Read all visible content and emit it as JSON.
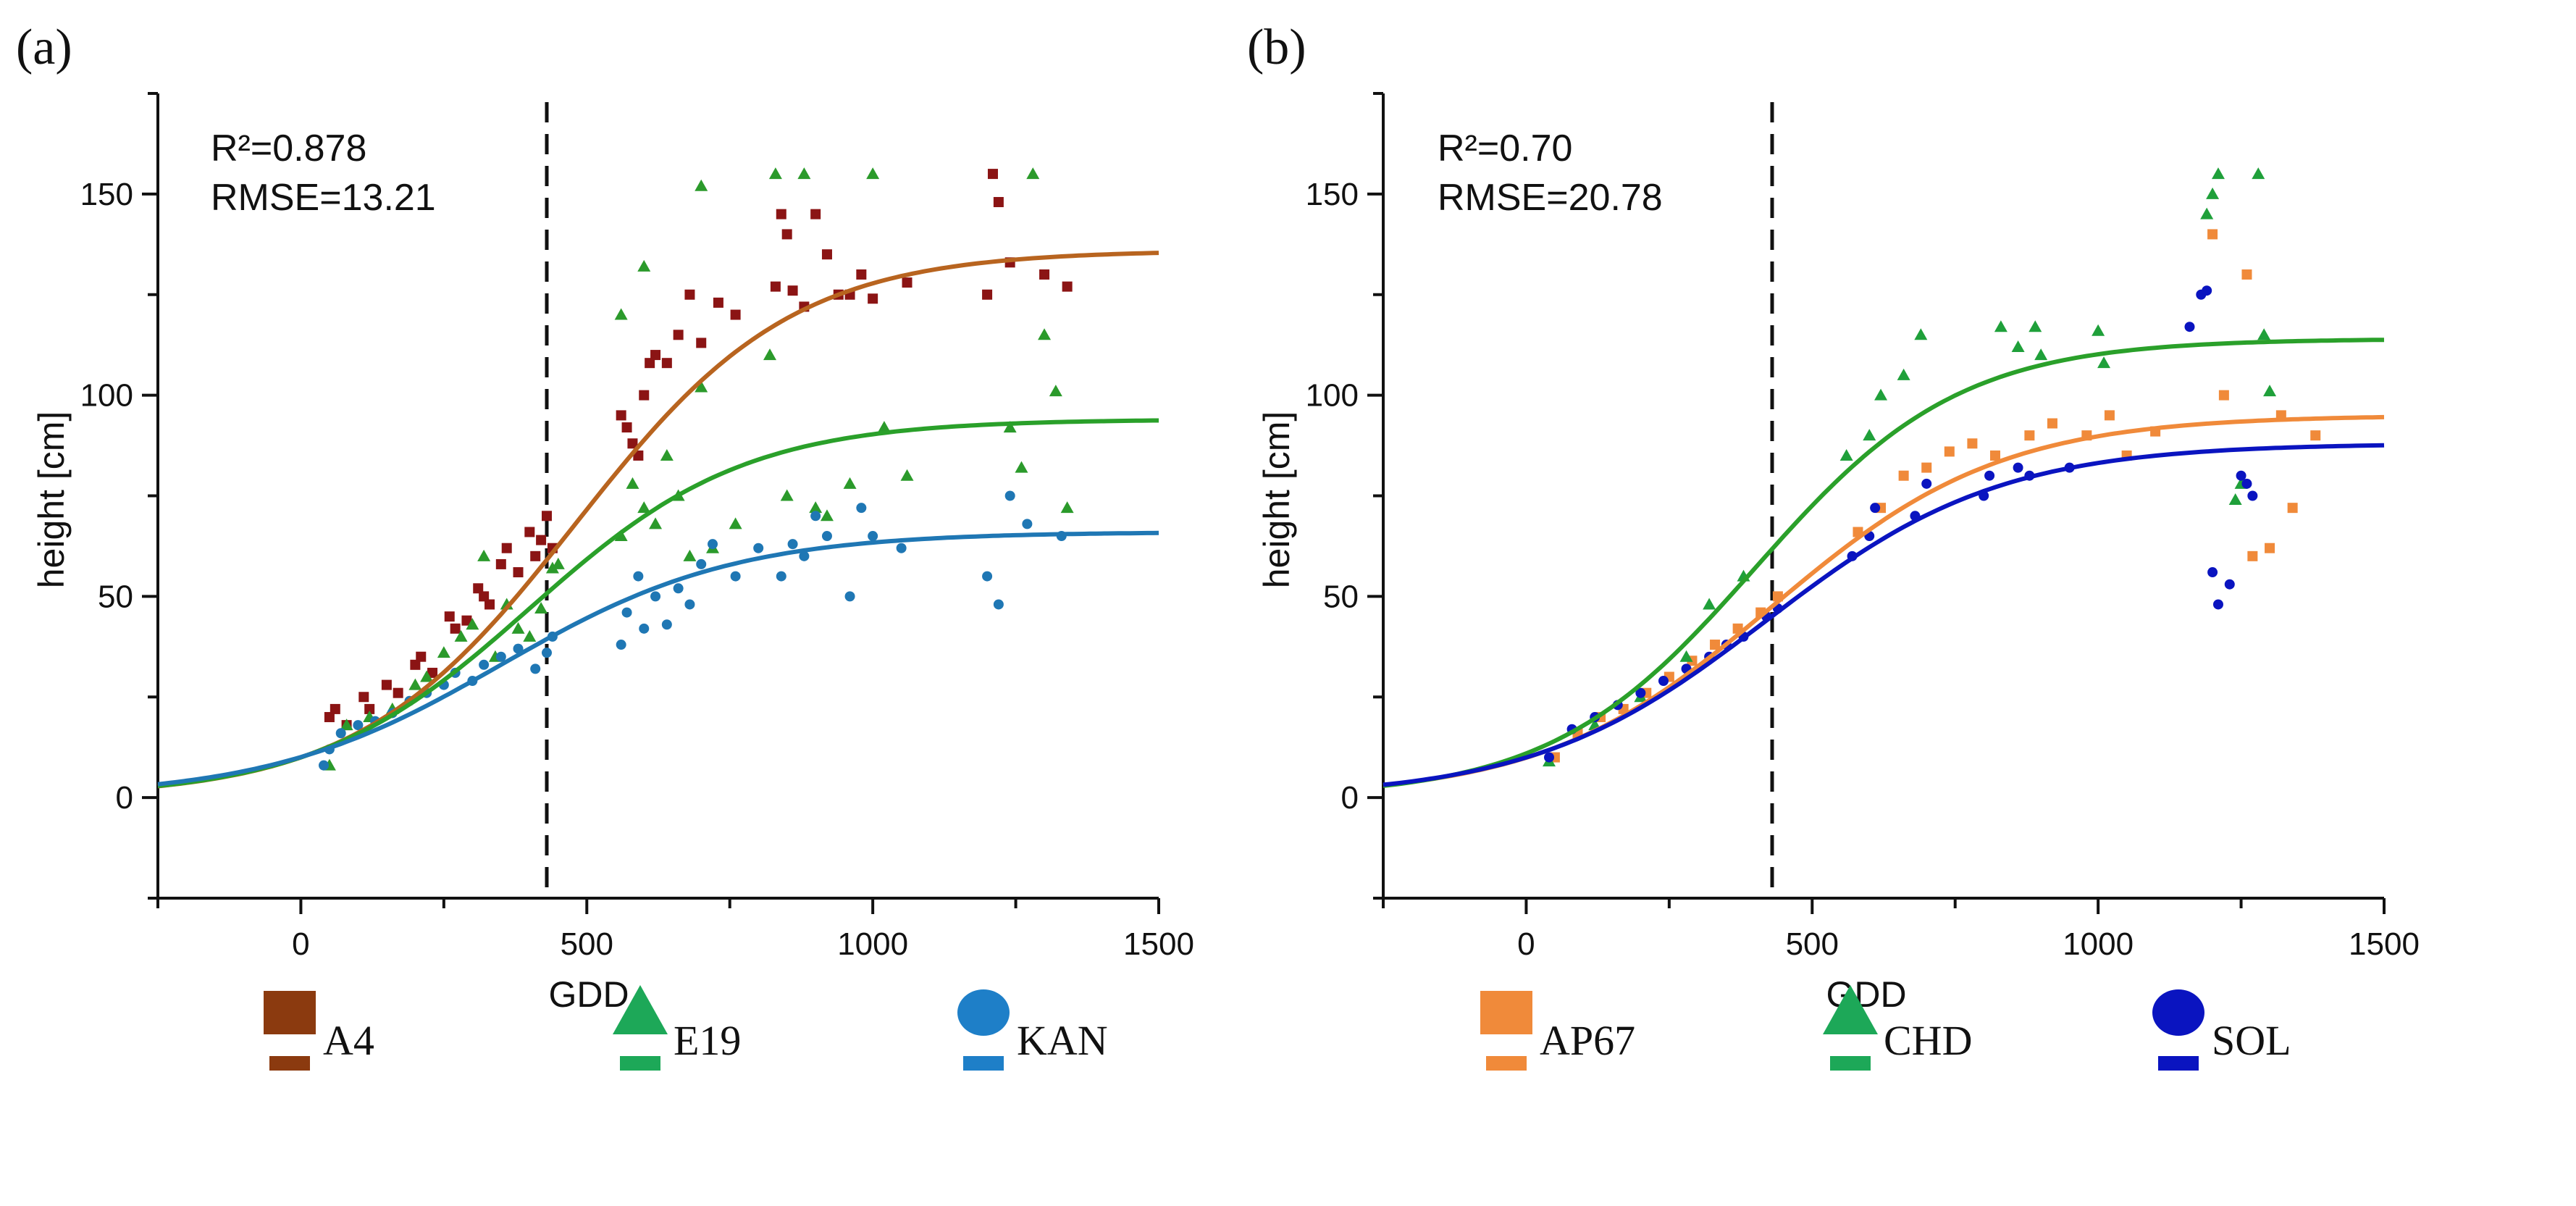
{
  "chart_data": [
    {
      "type": "scatter",
      "panel_label": "(a)",
      "xlabel": "GDD",
      "ylabel": "height [cm]",
      "xlim": [
        -250,
        1500
      ],
      "ylim": [
        -25,
        175
      ],
      "xticks": [
        0,
        500,
        1000,
        1500
      ],
      "yticks": [
        0,
        50,
        100,
        150
      ],
      "grid": false,
      "legend_placement": "bottom",
      "annotation": {
        "r2": "R²=0.878",
        "rmse": "RMSE=13.21"
      },
      "vline_x": 430,
      "series": [
        {
          "name": "A4",
          "marker": "square",
          "color": "#8B1414",
          "fit_color": "#B8641F",
          "legend_color": "#8B3A0F",
          "fit": {
            "K": 136,
            "x0": 480,
            "r": 0.00528
          },
          "points": [
            [
              50,
              20
            ],
            [
              60,
              22
            ],
            [
              80,
              18
            ],
            [
              110,
              25
            ],
            [
              120,
              22
            ],
            [
              150,
              28
            ],
            [
              170,
              26
            ],
            [
              200,
              33
            ],
            [
              210,
              35
            ],
            [
              230,
              31
            ],
            [
              260,
              45
            ],
            [
              270,
              42
            ],
            [
              290,
              44
            ],
            [
              310,
              52
            ],
            [
              320,
              50
            ],
            [
              330,
              48
            ],
            [
              350,
              58
            ],
            [
              360,
              62
            ],
            [
              380,
              56
            ],
            [
              400,
              66
            ],
            [
              410,
              60
            ],
            [
              420,
              64
            ],
            [
              430,
              70
            ],
            [
              440,
              62
            ],
            [
              560,
              95
            ],
            [
              570,
              92
            ],
            [
              580,
              88
            ],
            [
              590,
              85
            ],
            [
              600,
              100
            ],
            [
              610,
              108
            ],
            [
              620,
              110
            ],
            [
              640,
              108
            ],
            [
              660,
              115
            ],
            [
              680,
              125
            ],
            [
              700,
              113
            ],
            [
              730,
              123
            ],
            [
              760,
              120
            ],
            [
              830,
              127
            ],
            [
              840,
              145
            ],
            [
              850,
              140
            ],
            [
              860,
              126
            ],
            [
              880,
              122
            ],
            [
              900,
              145
            ],
            [
              920,
              135
            ],
            [
              940,
              125
            ],
            [
              960,
              125
            ],
            [
              980,
              130
            ],
            [
              1000,
              124
            ],
            [
              1060,
              128
            ],
            [
              1200,
              125
            ],
            [
              1210,
              155
            ],
            [
              1220,
              148
            ],
            [
              1240,
              133
            ],
            [
              1300,
              130
            ],
            [
              1340,
              127
            ]
          ]
        },
        {
          "name": "E19",
          "marker": "triangle",
          "color": "#2B9A2B",
          "fit_color": "#2AA02A",
          "legend_color": "#1DA858",
          "fit": {
            "K": 94,
            "x0": 400,
            "r": 0.00532
          },
          "points": [
            [
              50,
              8
            ],
            [
              80,
              18
            ],
            [
              120,
              20
            ],
            [
              160,
              22
            ],
            [
              200,
              28
            ],
            [
              220,
              30
            ],
            [
              250,
              36
            ],
            [
              280,
              40
            ],
            [
              300,
              43
            ],
            [
              320,
              60
            ],
            [
              340,
              35
            ],
            [
              360,
              48
            ],
            [
              380,
              42
            ],
            [
              400,
              40
            ],
            [
              420,
              47
            ],
            [
              440,
              57
            ],
            [
              450,
              58
            ],
            [
              560,
              120
            ],
            [
              560,
              65
            ],
            [
              580,
              78
            ],
            [
              600,
              132
            ],
            [
              600,
              72
            ],
            [
              620,
              68
            ],
            [
              640,
              85
            ],
            [
              660,
              75
            ],
            [
              680,
              60
            ],
            [
              700,
              152
            ],
            [
              700,
              102
            ],
            [
              720,
              62
            ],
            [
              760,
              68
            ],
            [
              820,
              110
            ],
            [
              830,
              155
            ],
            [
              850,
              75
            ],
            [
              880,
              155
            ],
            [
              900,
              72
            ],
            [
              920,
              70
            ],
            [
              960,
              78
            ],
            [
              1000,
              155
            ],
            [
              1020,
              92
            ],
            [
              1060,
              80
            ],
            [
              1240,
              92
            ],
            [
              1260,
              82
            ],
            [
              1280,
              155
            ],
            [
              1300,
              115
            ],
            [
              1320,
              101
            ],
            [
              1340,
              72
            ]
          ]
        },
        {
          "name": "KAN",
          "marker": "circle",
          "color": "#1F77B4",
          "fit_color": "#1F77B4",
          "legend_color": "#1E7FC8",
          "fit": {
            "K": 66,
            "x0": 350,
            "r": 0.0049
          },
          "points": [
            [
              40,
              8
            ],
            [
              50,
              12
            ],
            [
              70,
              16
            ],
            [
              100,
              18
            ],
            [
              130,
              19
            ],
            [
              160,
              21
            ],
            [
              190,
              24
            ],
            [
              220,
              26
            ],
            [
              250,
              28
            ],
            [
              270,
              31
            ],
            [
              300,
              29
            ],
            [
              320,
              33
            ],
            [
              350,
              35
            ],
            [
              380,
              37
            ],
            [
              410,
              32
            ],
            [
              430,
              36
            ],
            [
              440,
              40
            ],
            [
              560,
              38
            ],
            [
              570,
              46
            ],
            [
              590,
              55
            ],
            [
              600,
              42
            ],
            [
              620,
              50
            ],
            [
              640,
              43
            ],
            [
              660,
              52
            ],
            [
              680,
              48
            ],
            [
              700,
              58
            ],
            [
              720,
              63
            ],
            [
              760,
              55
            ],
            [
              800,
              62
            ],
            [
              840,
              55
            ],
            [
              860,
              63
            ],
            [
              880,
              60
            ],
            [
              900,
              70
            ],
            [
              920,
              65
            ],
            [
              960,
              50
            ],
            [
              980,
              72
            ],
            [
              1000,
              65
            ],
            [
              1050,
              62
            ],
            [
              1200,
              55
            ],
            [
              1220,
              48
            ],
            [
              1240,
              75
            ],
            [
              1270,
              68
            ],
            [
              1330,
              65
            ]
          ]
        }
      ]
    },
    {
      "type": "scatter",
      "panel_label": "(b)",
      "xlabel": "GDD",
      "ylabel": "height [cm]",
      "xlim": [
        -250,
        1500
      ],
      "ylim": [
        -25,
        175
      ],
      "xticks": [
        0,
        500,
        1000,
        1500
      ],
      "yticks": [
        0,
        50,
        100,
        150
      ],
      "grid": false,
      "legend_placement": "bottom",
      "annotation": {
        "r2": "R²=0.70",
        "rmse": "RMSE=20.78"
      },
      "vline_x": 430,
      "series": [
        {
          "name": "AP67",
          "marker": "square",
          "color": "#F08A3A",
          "fit_color": "#F08A3A",
          "legend_color": "#F08A3A",
          "fit": {
            "K": 95,
            "x0": 430,
            "r": 0.005
          },
          "points": [
            [
              50,
              10
            ],
            [
              90,
              16
            ],
            [
              130,
              20
            ],
            [
              170,
              22
            ],
            [
              210,
              26
            ],
            [
              250,
              30
            ],
            [
              290,
              34
            ],
            [
              330,
              38
            ],
            [
              370,
              42
            ],
            [
              410,
              46
            ],
            [
              440,
              50
            ],
            [
              580,
              66
            ],
            [
              620,
              72
            ],
            [
              660,
              80
            ],
            [
              700,
              82
            ],
            [
              740,
              86
            ],
            [
              780,
              88
            ],
            [
              820,
              85
            ],
            [
              880,
              90
            ],
            [
              920,
              93
            ],
            [
              980,
              90
            ],
            [
              1020,
              95
            ],
            [
              1050,
              85
            ],
            [
              1100,
              91
            ],
            [
              1200,
              140
            ],
            [
              1220,
              100
            ],
            [
              1260,
              130
            ],
            [
              1270,
              60
            ],
            [
              1300,
              62
            ],
            [
              1320,
              95
            ],
            [
              1340,
              72
            ],
            [
              1380,
              90
            ]
          ]
        },
        {
          "name": "CHD",
          "marker": "triangle",
          "color": "#1FA03A",
          "fit_color": "#2AA02A",
          "legend_color": "#1DA858",
          "fit": {
            "K": 114,
            "x0": 400,
            "r": 0.0056
          },
          "points": [
            [
              40,
              9
            ],
            [
              120,
              18
            ],
            [
              200,
              25
            ],
            [
              280,
              35
            ],
            [
              320,
              48
            ],
            [
              380,
              55
            ],
            [
              560,
              85
            ],
            [
              600,
              90
            ],
            [
              620,
              100
            ],
            [
              660,
              105
            ],
            [
              690,
              115
            ],
            [
              830,
              117
            ],
            [
              860,
              112
            ],
            [
              890,
              117
            ],
            [
              900,
              110
            ],
            [
              1000,
              116
            ],
            [
              1010,
              108
            ],
            [
              1190,
              145
            ],
            [
              1200,
              150
            ],
            [
              1210,
              155
            ],
            [
              1240,
              74
            ],
            [
              1250,
              78
            ],
            [
              1280,
              155
            ],
            [
              1290,
              115
            ],
            [
              1300,
              101
            ]
          ]
        },
        {
          "name": "SOL",
          "marker": "circle",
          "color": "#0A14C0",
          "fit_color": "#0A14C0",
          "legend_color": "#0A14C0",
          "fit": {
            "K": 88,
            "x0": 420,
            "r": 0.0049
          },
          "points": [
            [
              40,
              10
            ],
            [
              80,
              17
            ],
            [
              120,
              20
            ],
            [
              160,
              23
            ],
            [
              200,
              26
            ],
            [
              240,
              29
            ],
            [
              280,
              32
            ],
            [
              320,
              35
            ],
            [
              350,
              38
            ],
            [
              380,
              40
            ],
            [
              420,
              45
            ],
            [
              440,
              47
            ],
            [
              570,
              60
            ],
            [
              600,
              65
            ],
            [
              610,
              72
            ],
            [
              680,
              70
            ],
            [
              700,
              78
            ],
            [
              800,
              75
            ],
            [
              810,
              80
            ],
            [
              860,
              82
            ],
            [
              880,
              80
            ],
            [
              950,
              82
            ],
            [
              1160,
              117
            ],
            [
              1180,
              125
            ],
            [
              1190,
              126
            ],
            [
              1200,
              56
            ],
            [
              1210,
              48
            ],
            [
              1230,
              53
            ],
            [
              1250,
              80
            ],
            [
              1260,
              78
            ],
            [
              1270,
              75
            ]
          ]
        }
      ]
    }
  ]
}
